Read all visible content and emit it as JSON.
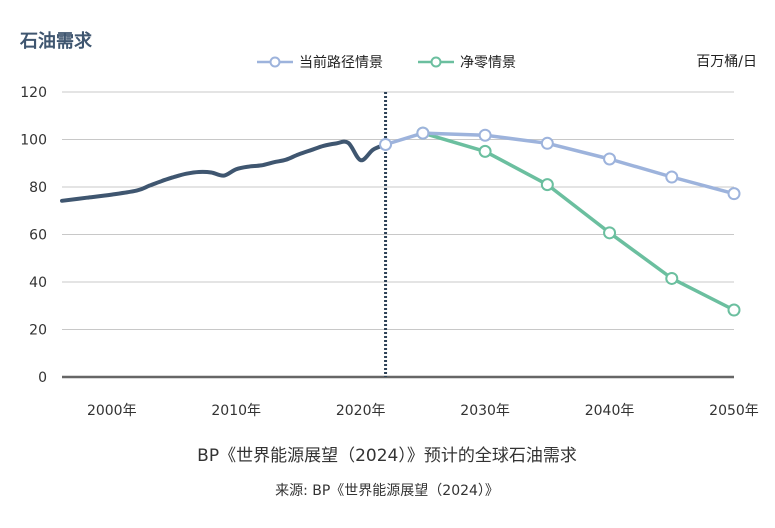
{
  "chart_data": {
    "type": "line",
    "title": "石油需求",
    "unit": "百万桶/日",
    "caption": "BP《世界能源展望（2024）》预计的全球石油需求",
    "source": "来源: BP《世界能源展望（2024）》",
    "ylim": [
      0,
      120
    ],
    "xlim": [
      1996,
      2050
    ],
    "y_ticks": [
      0,
      20,
      40,
      60,
      80,
      100,
      120
    ],
    "x_ticks": [
      2000,
      2010,
      2020,
      2030,
      2040,
      2050
    ],
    "x_tick_labels": [
      "2000年",
      "2010年",
      "2020年",
      "2030年",
      "2040年",
      "2050年"
    ],
    "grid": "horizontal",
    "legend_position": "top-center",
    "divider_x": 2022,
    "colors": {
      "history": "#3f5670",
      "current": "#9db3dc",
      "netzero": "#6bbf9f",
      "grid": "#c8c8c8",
      "axis": "#666666"
    },
    "history": {
      "x": [
        1996,
        1998,
        2000,
        2002,
        2003,
        2004,
        2005,
        2006,
        2007,
        2008,
        2009,
        2010,
        2011,
        2012,
        2013,
        2014,
        2015,
        2016,
        2017,
        2018,
        2019,
        2020,
        2021,
        2022
      ],
      "values": [
        74.2,
        75.5,
        76.8,
        78.5,
        80.5,
        82.5,
        84.2,
        85.6,
        86.3,
        86.1,
        84.8,
        87.5,
        88.6,
        89.1,
        90.4,
        91.5,
        93.7,
        95.5,
        97.3,
        98.3,
        98.6,
        91.3,
        95.7,
        97.9
      ]
    },
    "series": [
      {
        "name": "当前路径情景",
        "x": [
          2022,
          2025,
          2030,
          2035,
          2040,
          2045,
          2050
        ],
        "values": [
          97.9,
          102.7,
          101.8,
          98.4,
          91.8,
          84.2,
          77.2
        ]
      },
      {
        "name": "净零情景",
        "x": [
          2025,
          2030,
          2035,
          2040,
          2045,
          2050
        ],
        "values": [
          102.7,
          95.0,
          81.0,
          60.7,
          41.5,
          28.2
        ]
      }
    ]
  }
}
